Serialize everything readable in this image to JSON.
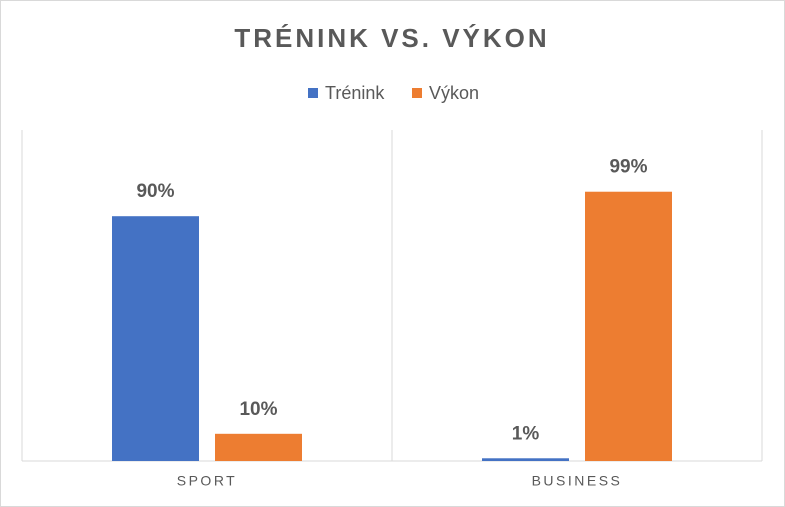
{
  "chart_data": {
    "type": "bar",
    "title": "TRÉNINK VS. VÝKON",
    "categories": [
      "SPORT",
      "BUSINESS"
    ],
    "series": [
      {
        "name": "Trénink",
        "color": "#4472c4",
        "values": [
          90,
          1
        ],
        "value_labels": [
          "90%",
          "1%"
        ]
      },
      {
        "name": "Výkon",
        "color": "#ed7d31",
        "values": [
          10,
          99
        ],
        "value_labels": [
          "10%",
          "99%"
        ]
      }
    ],
    "ylim": [
      0,
      100
    ],
    "legend": "top"
  }
}
